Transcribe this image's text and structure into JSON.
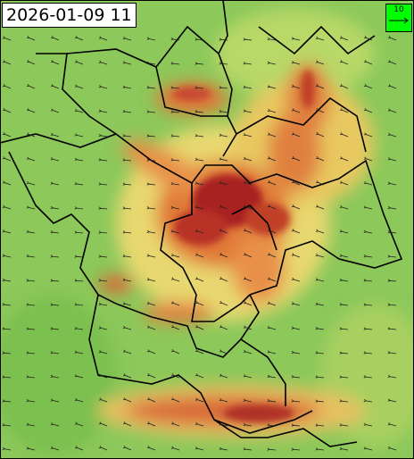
{
  "timestamp": "2026-01-09 11",
  "wind_legend": {
    "label": "10"
  }
}
